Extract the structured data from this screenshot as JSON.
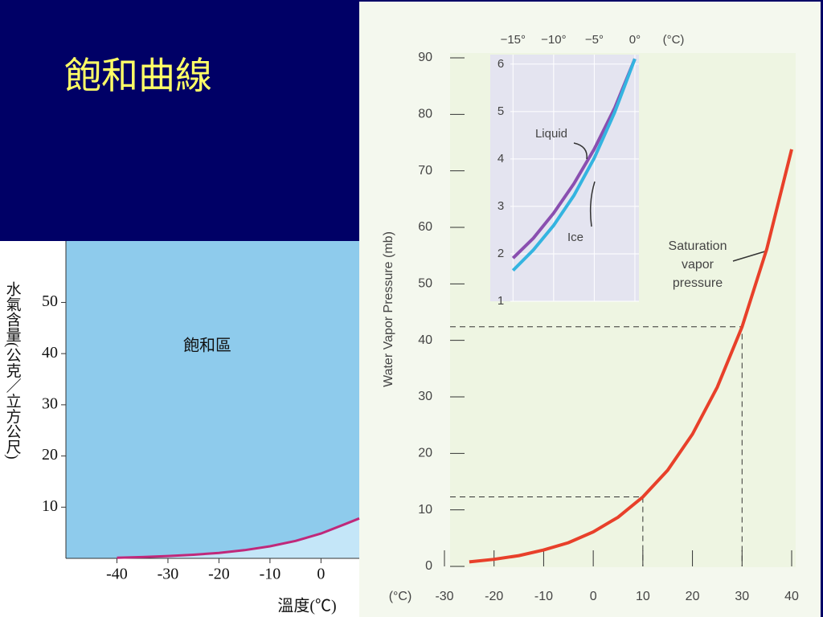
{
  "title": "飽和曲線",
  "chart_data": [
    {
      "type": "line",
      "ylabel": "水氣含量(公克／立方公尺)",
      "xlabel": "溫度(℃)",
      "annotation": "飽和區",
      "x": [
        -40,
        -35,
        -30,
        -25,
        -20,
        -15,
        -10,
        -5,
        0,
        5,
        7.5
      ],
      "series": [
        {
          "color": "#c0287a",
          "values": [
            0.12,
            0.25,
            0.45,
            0.7,
            1.07,
            1.6,
            2.36,
            3.4,
            4.85,
            6.8,
            7.8
          ]
        }
      ],
      "xlim": [
        -50,
        7.5
      ],
      "xticks": [
        -40,
        -30,
        -20,
        -10,
        0
      ],
      "ylim": [
        0,
        62
      ],
      "yticks": [
        10,
        20,
        30,
        40,
        50
      ],
      "fill_above": "#8ecbec",
      "fill_below": "#c4e6f8"
    },
    {
      "type": "line",
      "ylabel": "Water Vapor Pressure (mb)",
      "xlabel": "(°C)",
      "annotation": [
        "Saturation",
        "vapor",
        "pressure"
      ],
      "x": [
        -25,
        -20,
        -15,
        -10,
        -5,
        0,
        5,
        10,
        15,
        20,
        25,
        30,
        35,
        40
      ],
      "series": [
        {
          "color": "#e8402a",
          "values": [
            0.8,
            1.25,
            1.9,
            2.9,
            4.2,
            6.1,
            8.7,
            12.3,
            17,
            23.4,
            31.7,
            42.4,
            56.2,
            73.8
          ]
        }
      ],
      "reference_lines": [
        {
          "x": 10,
          "y": 12.3
        },
        {
          "x": 30,
          "y": 42.4
        }
      ],
      "xlim": [
        -30,
        40
      ],
      "xticks": [
        -30,
        -20,
        -10,
        0,
        10,
        20,
        30,
        40
      ],
      "ylim": [
        0,
        90
      ],
      "yticks": [
        0,
        10,
        20,
        30,
        40,
        50,
        60,
        70,
        80,
        90
      ]
    },
    {
      "type": "line",
      "xlabel": "(°C)",
      "x": [
        -15,
        -12.5,
        -10,
        -7.5,
        -5,
        -2.5,
        0
      ],
      "series": [
        {
          "name": "Liquid",
          "color": "#8a4fb0",
          "values": [
            1.91,
            2.33,
            2.86,
            3.48,
            4.21,
            5.07,
            6.11
          ]
        },
        {
          "name": "Ice",
          "color": "#34b4e0",
          "values": [
            1.65,
            2.08,
            2.6,
            3.23,
            4.02,
            4.98,
            6.11
          ]
        }
      ],
      "xlim": [
        -17.8,
        0.5
      ],
      "xticks": [
        {
          "value": -15,
          "label": "−15°"
        },
        {
          "value": -10,
          "label": "−10°"
        },
        {
          "value": -5,
          "label": "−5°"
        },
        {
          "value": 0,
          "label": "0°"
        }
      ],
      "ylim": [
        1,
        6.2
      ],
      "yticks": [
        1,
        2,
        3,
        4,
        5,
        6
      ],
      "grid": true
    }
  ]
}
